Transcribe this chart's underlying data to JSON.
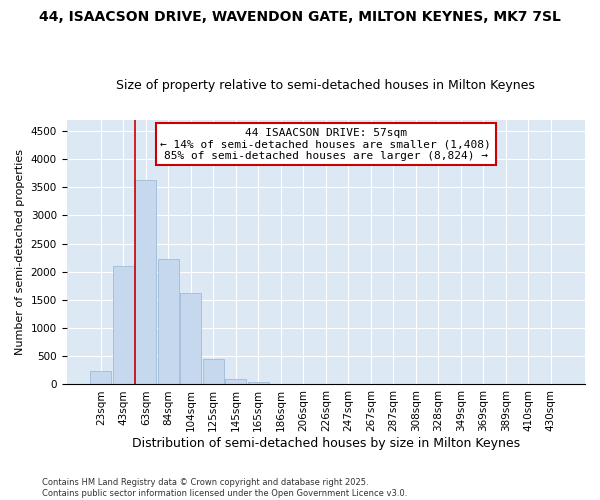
{
  "title1": "44, ISAACSON DRIVE, WAVENDON GATE, MILTON KEYNES, MK7 7SL",
  "title2": "Size of property relative to semi-detached houses in Milton Keynes",
  "xlabel": "Distribution of semi-detached houses by size in Milton Keynes",
  "ylabel": "Number of semi-detached properties",
  "categories": [
    "23sqm",
    "43sqm",
    "63sqm",
    "84sqm",
    "104sqm",
    "125sqm",
    "145sqm",
    "165sqm",
    "186sqm",
    "206sqm",
    "226sqm",
    "247sqm",
    "267sqm",
    "287sqm",
    "308sqm",
    "328sqm",
    "349sqm",
    "369sqm",
    "389sqm",
    "410sqm",
    "430sqm"
  ],
  "values": [
    240,
    2100,
    3620,
    2230,
    1630,
    450,
    105,
    50,
    0,
    0,
    0,
    0,
    0,
    0,
    0,
    0,
    0,
    0,
    0,
    0,
    0
  ],
  "bar_color": "#c5d8ee",
  "bar_edge_color": "#a0bcd8",
  "vline_x": 1.5,
  "vline_color": "#cc0000",
  "annotation_text": "44 ISAACSON DRIVE: 57sqm\n← 14% of semi-detached houses are smaller (1,408)\n85% of semi-detached houses are larger (8,824) →",
  "annotation_box_color": "#ffffff",
  "annotation_box_edge": "#cc0000",
  "ylim": [
    0,
    4700
  ],
  "yticks": [
    0,
    500,
    1000,
    1500,
    2000,
    2500,
    3000,
    3500,
    4000,
    4500
  ],
  "background_color": "#dde8f5",
  "footer_text": "Contains HM Land Registry data © Crown copyright and database right 2025.\nContains public sector information licensed under the Open Government Licence v3.0.",
  "title1_fontsize": 10,
  "title2_fontsize": 9,
  "xlabel_fontsize": 9,
  "ylabel_fontsize": 8,
  "tick_fontsize": 7.5,
  "annotation_fontsize": 8
}
